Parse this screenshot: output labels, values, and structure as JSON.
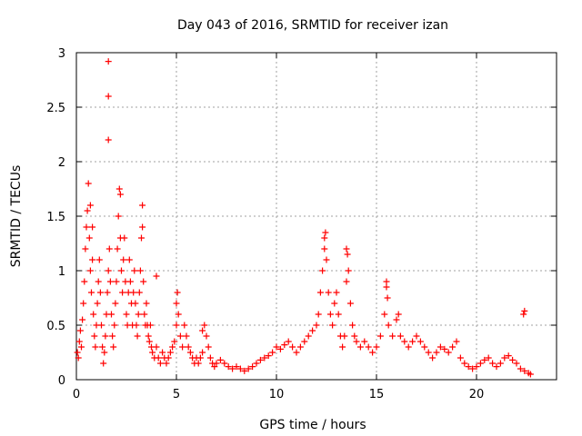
{
  "chart_data": {
    "type": "scatter",
    "title": "Day 043 of 2016, SRMTID for receiver izan",
    "xlabel": "GPS time / hours",
    "ylabel": "SRMTID / TECUs",
    "xlim": [
      0,
      24
    ],
    "ylim": [
      0,
      3
    ],
    "xticks": [
      0,
      5,
      10,
      15,
      20
    ],
    "yticks": [
      0,
      0.5,
      1,
      1.5,
      2,
      2.5,
      3
    ],
    "xtick_labels": [
      "0",
      "5",
      "10",
      "15",
      "20"
    ],
    "ytick_labels": [
      "0",
      "0.5",
      "1",
      "1.5",
      "2",
      "2.5",
      "3"
    ],
    "grid": true,
    "marker": "+",
    "color": "#ff0000",
    "series": [
      {
        "name": "SRMTID",
        "points": [
          [
            0.05,
            0.25
          ],
          [
            0.1,
            0.2
          ],
          [
            0.15,
            0.35
          ],
          [
            0.2,
            0.45
          ],
          [
            0.25,
            0.3
          ],
          [
            0.3,
            0.55
          ],
          [
            0.35,
            0.7
          ],
          [
            0.4,
            0.9
          ],
          [
            0.45,
            1.2
          ],
          [
            0.5,
            1.4
          ],
          [
            0.55,
            1.55
          ],
          [
            0.6,
            1.8
          ],
          [
            0.65,
            1.3
          ],
          [
            0.7,
            1.0
          ],
          [
            0.75,
            0.8
          ],
          [
            0.8,
            1.1
          ],
          [
            0.85,
            0.6
          ],
          [
            0.9,
            0.4
          ],
          [
            0.95,
            0.3
          ],
          [
            1.0,
            0.5
          ],
          [
            1.05,
            0.7
          ],
          [
            1.1,
            0.9
          ],
          [
            1.15,
            1.1
          ],
          [
            1.2,
            0.8
          ],
          [
            1.25,
            0.5
          ],
          [
            1.3,
            0.3
          ],
          [
            1.35,
            0.15
          ],
          [
            1.4,
            0.25
          ],
          [
            1.45,
            0.4
          ],
          [
            1.5,
            0.6
          ],
          [
            1.55,
            0.8
          ],
          [
            1.6,
            1.0
          ],
          [
            1.65,
            1.2
          ],
          [
            1.7,
            0.9
          ],
          [
            1.75,
            0.6
          ],
          [
            1.8,
            0.4
          ],
          [
            1.85,
            0.3
          ],
          [
            1.9,
            0.5
          ],
          [
            1.95,
            0.7
          ],
          [
            2.0,
            0.9
          ],
          [
            2.05,
            1.2
          ],
          [
            2.1,
            1.5
          ],
          [
            2.15,
            1.75
          ],
          [
            2.2,
            1.3
          ],
          [
            2.25,
            1.0
          ],
          [
            2.3,
            0.8
          ],
          [
            2.35,
            1.1
          ],
          [
            2.4,
            1.3
          ],
          [
            2.45,
            0.9
          ],
          [
            2.5,
            0.6
          ],
          [
            2.55,
            0.5
          ],
          [
            2.6,
            0.8
          ],
          [
            2.65,
            1.1
          ],
          [
            2.7,
            0.9
          ],
          [
            2.75,
            0.7
          ],
          [
            2.8,
            0.5
          ],
          [
            2.85,
            0.8
          ],
          [
            2.9,
            1.0
          ],
          [
            2.95,
            0.7
          ],
          [
            3.0,
            0.5
          ],
          [
            3.05,
            0.4
          ],
          [
            3.1,
            0.6
          ],
          [
            3.15,
            0.8
          ],
          [
            3.2,
            1.0
          ],
          [
            3.25,
            1.3
          ],
          [
            3.3,
            1.6
          ],
          [
            3.35,
            0.9
          ],
          [
            3.4,
            0.6
          ],
          [
            3.45,
            0.5
          ],
          [
            3.5,
            0.7
          ],
          [
            3.55,
            0.5
          ],
          [
            3.6,
            0.4
          ],
          [
            3.65,
            0.35
          ],
          [
            3.7,
            0.5
          ],
          [
            3.75,
            0.3
          ],
          [
            3.8,
            0.25
          ],
          [
            3.9,
            0.2
          ],
          [
            4.0,
            0.3
          ],
          [
            4.1,
            0.2
          ],
          [
            4.2,
            0.15
          ],
          [
            4.3,
            0.25
          ],
          [
            4.4,
            0.2
          ],
          [
            4.5,
            0.15
          ],
          [
            4.6,
            0.2
          ],
          [
            4.7,
            0.25
          ],
          [
            4.8,
            0.3
          ],
          [
            4.9,
            0.35
          ],
          [
            5.0,
            0.5
          ],
          [
            5.05,
            0.8
          ],
          [
            5.1,
            0.6
          ],
          [
            5.2,
            0.4
          ],
          [
            5.3,
            0.3
          ],
          [
            5.4,
            0.5
          ],
          [
            5.5,
            0.4
          ],
          [
            5.6,
            0.3
          ],
          [
            5.7,
            0.25
          ],
          [
            5.8,
            0.2
          ],
          [
            5.9,
            0.15
          ],
          [
            6.0,
            0.2
          ],
          [
            6.1,
            0.15
          ],
          [
            6.2,
            0.2
          ],
          [
            6.3,
            0.25
          ],
          [
            6.4,
            0.5
          ],
          [
            6.5,
            0.4
          ],
          [
            6.6,
            0.3
          ],
          [
            6.7,
            0.2
          ],
          [
            6.8,
            0.15
          ],
          [
            6.9,
            0.12
          ],
          [
            7.0,
            0.15
          ],
          [
            7.2,
            0.18
          ],
          [
            7.4,
            0.15
          ],
          [
            7.6,
            0.12
          ],
          [
            7.8,
            0.1
          ],
          [
            8.0,
            0.12
          ],
          [
            8.2,
            0.1
          ],
          [
            8.4,
            0.08
          ],
          [
            8.6,
            0.1
          ],
          [
            8.8,
            0.12
          ],
          [
            9.0,
            0.15
          ],
          [
            9.2,
            0.18
          ],
          [
            9.4,
            0.2
          ],
          [
            9.6,
            0.22
          ],
          [
            9.8,
            0.25
          ],
          [
            10.0,
            0.3
          ],
          [
            10.2,
            0.28
          ],
          [
            10.4,
            0.32
          ],
          [
            10.6,
            0.35
          ],
          [
            10.8,
            0.3
          ],
          [
            11.0,
            0.25
          ],
          [
            11.2,
            0.3
          ],
          [
            11.4,
            0.35
          ],
          [
            11.6,
            0.4
          ],
          [
            11.8,
            0.45
          ],
          [
            12.0,
            0.5
          ],
          [
            12.1,
            0.6
          ],
          [
            12.2,
            0.8
          ],
          [
            12.3,
            1.0
          ],
          [
            12.4,
            1.2
          ],
          [
            12.45,
            1.35
          ],
          [
            12.5,
            1.1
          ],
          [
            12.6,
            0.8
          ],
          [
            12.7,
            0.6
          ],
          [
            12.8,
            0.5
          ],
          [
            12.9,
            0.7
          ],
          [
            13.0,
            0.8
          ],
          [
            13.1,
            0.6
          ],
          [
            13.2,
            0.4
          ],
          [
            13.3,
            0.3
          ],
          [
            13.4,
            0.4
          ],
          [
            13.5,
            0.9
          ],
          [
            13.55,
            1.15
          ],
          [
            13.6,
            1.0
          ],
          [
            13.7,
            0.7
          ],
          [
            13.8,
            0.5
          ],
          [
            13.9,
            0.4
          ],
          [
            14.0,
            0.35
          ],
          [
            14.2,
            0.3
          ],
          [
            14.4,
            0.35
          ],
          [
            14.6,
            0.3
          ],
          [
            14.8,
            0.25
          ],
          [
            15.0,
            0.3
          ],
          [
            15.2,
            0.4
          ],
          [
            15.4,
            0.6
          ],
          [
            15.5,
            0.9
          ],
          [
            15.55,
            0.75
          ],
          [
            15.6,
            0.5
          ],
          [
            15.8,
            0.4
          ],
          [
            16.0,
            0.55
          ],
          [
            16.1,
            0.6
          ],
          [
            16.2,
            0.4
          ],
          [
            16.4,
            0.35
          ],
          [
            16.6,
            0.3
          ],
          [
            16.8,
            0.35
          ],
          [
            17.0,
            0.4
          ],
          [
            17.2,
            0.35
          ],
          [
            17.4,
            0.3
          ],
          [
            17.6,
            0.25
          ],
          [
            17.8,
            0.2
          ],
          [
            18.0,
            0.25
          ],
          [
            18.2,
            0.3
          ],
          [
            18.4,
            0.28
          ],
          [
            18.6,
            0.25
          ],
          [
            18.8,
            0.3
          ],
          [
            19.0,
            0.35
          ],
          [
            19.2,
            0.2
          ],
          [
            19.4,
            0.15
          ],
          [
            19.6,
            0.12
          ],
          [
            19.8,
            0.1
          ],
          [
            20.0,
            0.12
          ],
          [
            20.2,
            0.15
          ],
          [
            20.4,
            0.18
          ],
          [
            20.6,
            0.2
          ],
          [
            20.8,
            0.15
          ],
          [
            21.0,
            0.12
          ],
          [
            21.2,
            0.15
          ],
          [
            21.4,
            0.2
          ],
          [
            21.6,
            0.22
          ],
          [
            21.8,
            0.18
          ],
          [
            22.0,
            0.15
          ],
          [
            22.2,
            0.1
          ],
          [
            22.4,
            0.08
          ],
          [
            22.6,
            0.06
          ],
          [
            22.7,
            0.05
          ],
          [
            22.35,
            0.6
          ],
          [
            22.4,
            0.63
          ],
          [
            1.6,
            2.92
          ],
          [
            1.6,
            2.6
          ],
          [
            1.6,
            2.2
          ],
          [
            0.7,
            1.6
          ],
          [
            0.8,
            1.4
          ],
          [
            2.2,
            1.7
          ],
          [
            3.3,
            1.4
          ],
          [
            4.0,
            0.95
          ],
          [
            5.0,
            0.7
          ],
          [
            6.3,
            0.45
          ],
          [
            12.4,
            1.3
          ],
          [
            13.5,
            1.2
          ],
          [
            15.5,
            0.85
          ]
        ]
      }
    ]
  }
}
